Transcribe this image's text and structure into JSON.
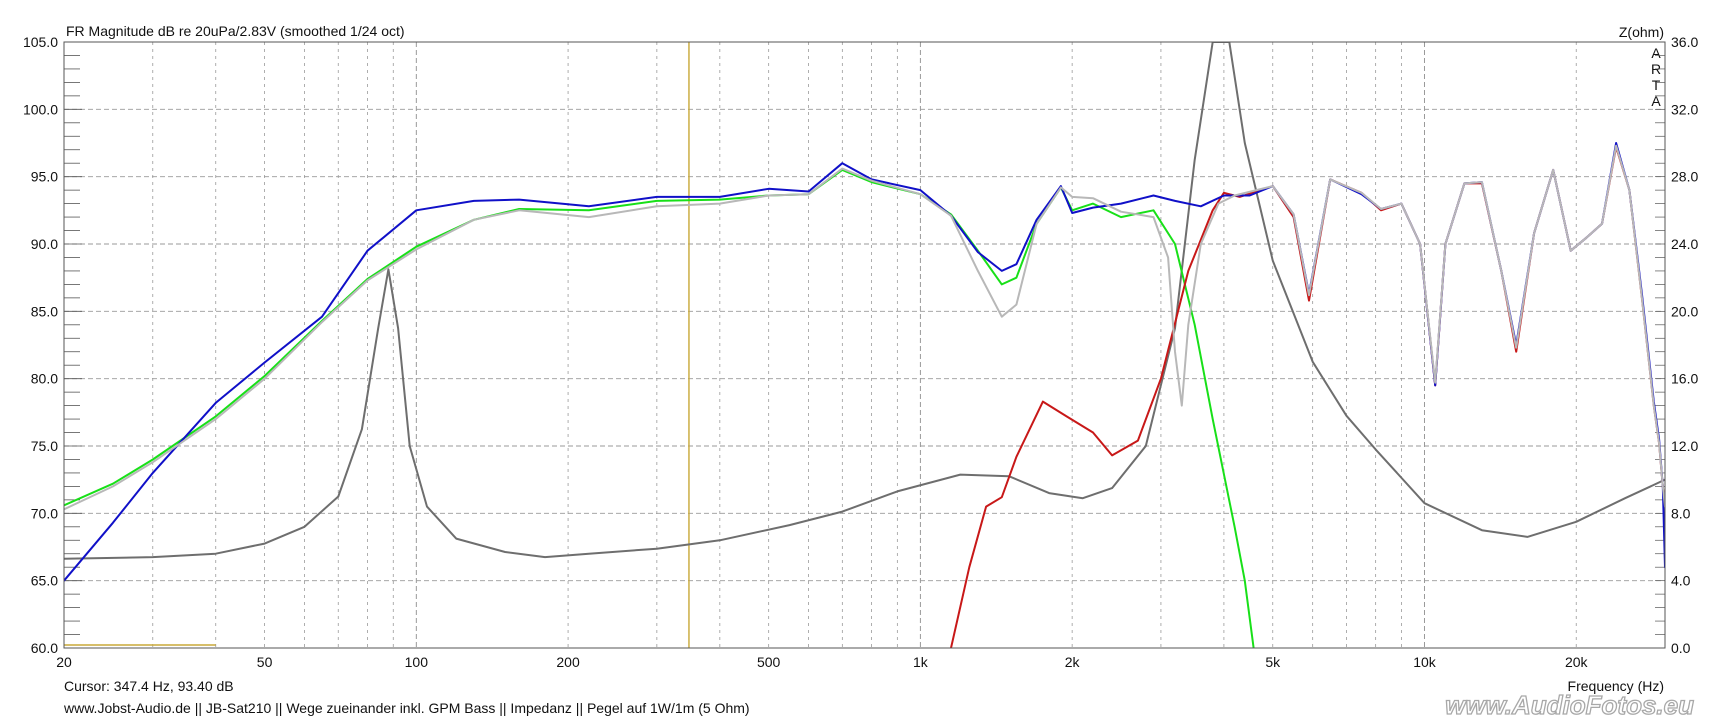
{
  "title": "FR Magnitude dB re 20uPa/2.83V (smoothed 1/24 oct)",
  "right_axis_title": "Z(ohm)",
  "arta_letters": [
    "A",
    "R",
    "T",
    "A"
  ],
  "x_axis_title": "Frequency (Hz)",
  "cursor_text": "Cursor: 347.4 Hz, 93.40 dB",
  "footer_text": "www.Jobst-Audio.de  ||  JB-Sat210  ||  Wege zueinander inkl. GPM Bass  ||  Impedanz  ||  Pegel auf 1W/1m (5 Ohm)",
  "watermark": "www.AudioFotos.eu",
  "colors": {
    "grid": "#9a9a9a",
    "background": "#ffffff",
    "arta": "#c0282a",
    "cursor": "#c8a838",
    "watermark": "#a8a8a8"
  },
  "chart_data": {
    "type": "line",
    "x_scale": "log",
    "xlim": [
      20,
      30000
    ],
    "ylim_left": [
      60,
      105
    ],
    "ylim_right": [
      0,
      36
    ],
    "grid": true,
    "x_ticks": [
      {
        "v": 20,
        "label": "20"
      },
      {
        "v": 50,
        "label": "50"
      },
      {
        "v": 100,
        "label": "100"
      },
      {
        "v": 200,
        "label": "200"
      },
      {
        "v": 500,
        "label": "500"
      },
      {
        "v": 1000,
        "label": "1k"
      },
      {
        "v": 2000,
        "label": "2k"
      },
      {
        "v": 5000,
        "label": "5k"
      },
      {
        "v": 10000,
        "label": "10k"
      },
      {
        "v": 20000,
        "label": "20k"
      }
    ],
    "y_ticks_left": [
      "60.0",
      "65.0",
      "70.0",
      "75.0",
      "80.0",
      "85.0",
      "90.0",
      "95.0",
      "100.0",
      "105.0"
    ],
    "y_ticks_right": [
      "0.0",
      "4.0",
      "8.0",
      "12.0",
      "16.0",
      "20.0",
      "24.0",
      "28.0",
      "32.0",
      "36.0"
    ],
    "cursor_x": 347.4,
    "series": [
      {
        "id": "impedance",
        "axis": "right",
        "color": "#6e6e6e",
        "points": [
          [
            20,
            5.3
          ],
          [
            30,
            5.4
          ],
          [
            40,
            5.6
          ],
          [
            50,
            6.2
          ],
          [
            60,
            7.2
          ],
          [
            70,
            9
          ],
          [
            78,
            13
          ],
          [
            84,
            19
          ],
          [
            88,
            22.5
          ],
          [
            92,
            19
          ],
          [
            97,
            12
          ],
          [
            105,
            8.4
          ],
          [
            120,
            6.5
          ],
          [
            150,
            5.7
          ],
          [
            180,
            5.4
          ],
          [
            220,
            5.6
          ],
          [
            300,
            5.9
          ],
          [
            400,
            6.4
          ],
          [
            550,
            7.3
          ],
          [
            700,
            8.1
          ],
          [
            900,
            9.3
          ],
          [
            1200,
            10.3
          ],
          [
            1500,
            10.2
          ],
          [
            1800,
            9.2
          ],
          [
            2100,
            8.9
          ],
          [
            2400,
            9.5
          ],
          [
            2800,
            12
          ],
          [
            3200,
            19
          ],
          [
            3500,
            29
          ],
          [
            3800,
            36
          ],
          [
            4100,
            36
          ],
          [
            4400,
            30
          ],
          [
            5000,
            23
          ],
          [
            6000,
            17
          ],
          [
            7000,
            13.8
          ],
          [
            8000,
            11.8
          ],
          [
            10000,
            8.6
          ],
          [
            13000,
            7
          ],
          [
            16000,
            6.6
          ],
          [
            20000,
            7.5
          ],
          [
            25000,
            8.9
          ],
          [
            30000,
            10
          ]
        ]
      },
      {
        "id": "low_section",
        "axis": "left",
        "color": "#18e018",
        "points": [
          [
            20,
            70.6
          ],
          [
            25,
            72.2
          ],
          [
            30,
            74
          ],
          [
            40,
            77.2
          ],
          [
            50,
            80.2
          ],
          [
            65,
            84.3
          ],
          [
            80,
            87.4
          ],
          [
            100,
            89.8
          ],
          [
            130,
            91.8
          ],
          [
            160,
            92.6
          ],
          [
            220,
            92.5
          ],
          [
            300,
            93.2
          ],
          [
            400,
            93.3
          ],
          [
            500,
            93.6
          ],
          [
            600,
            93.7
          ],
          [
            700,
            95.5
          ],
          [
            800,
            94.6
          ],
          [
            1000,
            93.7
          ],
          [
            1150,
            92.2
          ],
          [
            1300,
            89.5
          ],
          [
            1450,
            87
          ],
          [
            1550,
            87.5
          ],
          [
            1700,
            91.5
          ],
          [
            1900,
            94.2
          ],
          [
            2000,
            92.5
          ],
          [
            2200,
            93
          ],
          [
            2500,
            92
          ],
          [
            2900,
            92.5
          ],
          [
            3200,
            90
          ],
          [
            3500,
            84
          ],
          [
            3800,
            77
          ],
          [
            4200,
            69
          ],
          [
            4400,
            65
          ],
          [
            4600,
            59.5
          ]
        ]
      },
      {
        "id": "high_section",
        "axis": "left",
        "color": "#c81818",
        "points": [
          [
            1150,
            60
          ],
          [
            1250,
            66
          ],
          [
            1350,
            70.5
          ],
          [
            1450,
            71.2
          ],
          [
            1550,
            74.2
          ],
          [
            1750,
            78.3
          ],
          [
            1950,
            77.2
          ],
          [
            2200,
            76
          ],
          [
            2400,
            74.3
          ],
          [
            2700,
            75.4
          ],
          [
            3000,
            80
          ],
          [
            3400,
            88
          ],
          [
            3800,
            92.5
          ],
          [
            4000,
            93.8
          ],
          [
            4300,
            93.5
          ],
          [
            5000,
            94.3
          ],
          [
            5500,
            92
          ],
          [
            5900,
            85.8
          ],
          [
            6500,
            94.8
          ],
          [
            7500,
            93.8
          ],
          [
            8200,
            92.5
          ],
          [
            9000,
            93
          ],
          [
            9800,
            90
          ],
          [
            10500,
            79.5
          ],
          [
            11000,
            90
          ],
          [
            12000,
            94.5
          ],
          [
            13000,
            94.5
          ],
          [
            14200,
            88
          ],
          [
            15200,
            82
          ],
          [
            16500,
            90.8
          ],
          [
            18000,
            95.5
          ],
          [
            19500,
            89.5
          ],
          [
            21000,
            90.5
          ],
          [
            22500,
            91.5
          ],
          [
            24000,
            97.2
          ],
          [
            25500,
            94
          ],
          [
            27000,
            86
          ],
          [
            28500,
            78
          ],
          [
            29200,
            75.2
          ],
          [
            29700,
            72
          ],
          [
            30000,
            70.5
          ]
        ]
      },
      {
        "id": "total_response",
        "axis": "left",
        "color": "#1010c8",
        "points": [
          [
            20,
            65
          ],
          [
            25,
            69.3
          ],
          [
            30,
            73
          ],
          [
            40,
            78.2
          ],
          [
            50,
            81.2
          ],
          [
            65,
            84.6
          ],
          [
            80,
            89.5
          ],
          [
            100,
            92.5
          ],
          [
            130,
            93.2
          ],
          [
            160,
            93.3
          ],
          [
            220,
            92.8
          ],
          [
            300,
            93.5
          ],
          [
            400,
            93.5
          ],
          [
            500,
            94.1
          ],
          [
            600,
            93.9
          ],
          [
            700,
            96
          ],
          [
            800,
            94.8
          ],
          [
            1000,
            94
          ],
          [
            1150,
            92.1
          ],
          [
            1300,
            89.4
          ],
          [
            1450,
            88
          ],
          [
            1550,
            88.5
          ],
          [
            1700,
            91.8
          ],
          [
            1900,
            94.3
          ],
          [
            2000,
            92.3
          ],
          [
            2200,
            92.7
          ],
          [
            2500,
            93
          ],
          [
            2900,
            93.6
          ],
          [
            3200,
            93.2
          ],
          [
            3600,
            92.8
          ],
          [
            4000,
            93.6
          ],
          [
            4500,
            93.6
          ],
          [
            5000,
            94.3
          ],
          [
            5500,
            92.2
          ],
          [
            5900,
            86.3
          ],
          [
            6500,
            94.8
          ],
          [
            7500,
            93.7
          ],
          [
            8200,
            92.6
          ],
          [
            9000,
            93
          ],
          [
            9800,
            90
          ],
          [
            10500,
            79.5
          ],
          [
            11000,
            90
          ],
          [
            12000,
            94.5
          ],
          [
            13000,
            94.6
          ],
          [
            14200,
            88
          ],
          [
            15200,
            82.5
          ],
          [
            16500,
            90.8
          ],
          [
            18000,
            95.5
          ],
          [
            19500,
            89.5
          ],
          [
            21000,
            90.5
          ],
          [
            22500,
            91.5
          ],
          [
            24000,
            97.5
          ],
          [
            25500,
            94
          ],
          [
            27000,
            86.3
          ],
          [
            28500,
            78.3
          ],
          [
            29200,
            75.5
          ],
          [
            29700,
            72
          ],
          [
            30000,
            66
          ]
        ]
      },
      {
        "id": "reference",
        "axis": "left",
        "color": "#b8b8b8",
        "points": [
          [
            20,
            70.3
          ],
          [
            25,
            72
          ],
          [
            30,
            73.8
          ],
          [
            40,
            77
          ],
          [
            50,
            80
          ],
          [
            65,
            84.2
          ],
          [
            80,
            87.3
          ],
          [
            100,
            89.6
          ],
          [
            130,
            91.8
          ],
          [
            160,
            92.5
          ],
          [
            220,
            92
          ],
          [
            300,
            92.8
          ],
          [
            400,
            93
          ],
          [
            500,
            93.6
          ],
          [
            600,
            93.7
          ],
          [
            700,
            95.6
          ],
          [
            800,
            94.7
          ],
          [
            1000,
            93.7
          ],
          [
            1150,
            92.1
          ],
          [
            1300,
            88
          ],
          [
            1450,
            84.6
          ],
          [
            1550,
            85.5
          ],
          [
            1700,
            91.5
          ],
          [
            1900,
            94.2
          ],
          [
            2000,
            93.5
          ],
          [
            2200,
            93.4
          ],
          [
            2500,
            92.4
          ],
          [
            2900,
            92
          ],
          [
            3100,
            89
          ],
          [
            3200,
            82
          ],
          [
            3300,
            78
          ],
          [
            3400,
            84
          ],
          [
            3600,
            90
          ],
          [
            3900,
            93
          ],
          [
            4200,
            93.6
          ],
          [
            5000,
            94.3
          ],
          [
            5500,
            92.2
          ],
          [
            5900,
            86.2
          ],
          [
            6500,
            94.8
          ],
          [
            7500,
            93.8
          ],
          [
            8200,
            92.6
          ],
          [
            9000,
            93
          ],
          [
            9800,
            90
          ],
          [
            10500,
            79.7
          ],
          [
            11000,
            90
          ],
          [
            12000,
            94.5
          ],
          [
            13000,
            94.6
          ],
          [
            14200,
            88
          ],
          [
            15200,
            82.3
          ],
          [
            16500,
            90.8
          ],
          [
            18000,
            95.5
          ],
          [
            19500,
            89.5
          ],
          [
            21000,
            90.5
          ],
          [
            22500,
            91.5
          ],
          [
            24000,
            97.3
          ],
          [
            25500,
            94
          ],
          [
            27000,
            86
          ],
          [
            28500,
            78
          ],
          [
            29200,
            75.2
          ],
          [
            29700,
            72
          ],
          [
            30000,
            70.5
          ]
        ]
      }
    ]
  }
}
